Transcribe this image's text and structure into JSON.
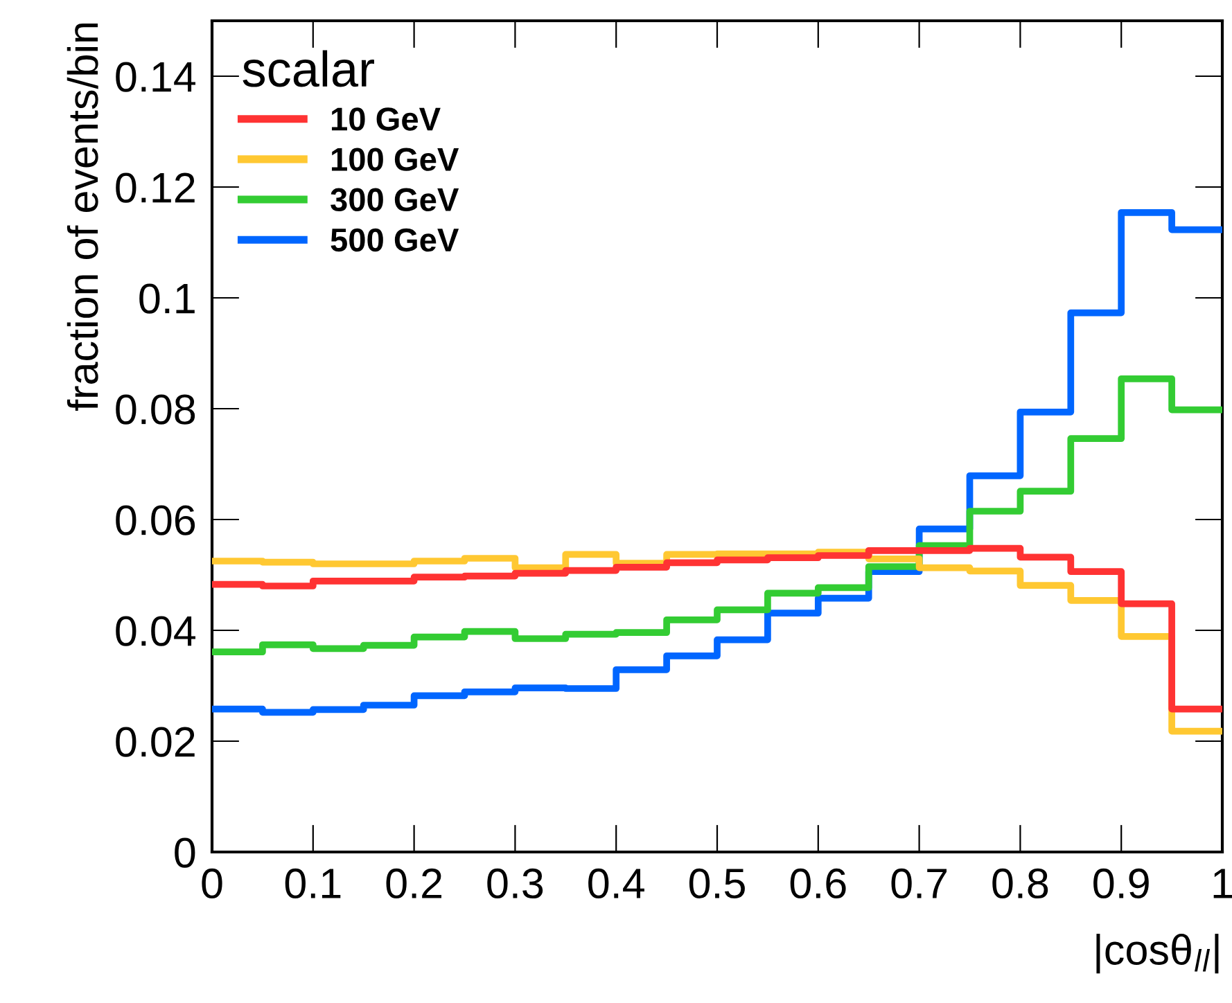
{
  "chart_data": {
    "type": "histogram",
    "xlabel": "|cosθ$_{ll}$|",
    "ylabel": "fraction of events/bin",
    "legend_title": "scalar",
    "legend": "top left",
    "grid": false,
    "bins": [
      0,
      0.05,
      0.1,
      0.15,
      0.2,
      0.25,
      0.3,
      0.35,
      0.4,
      0.45,
      0.5,
      0.55,
      0.6,
      0.65,
      0.7,
      0.75,
      0.8,
      0.85,
      0.9,
      0.95,
      1
    ],
    "xlim": [
      0,
      1
    ],
    "xticks": [
      0,
      0.1,
      0.2,
      0.3,
      0.4,
      0.5,
      0.6,
      0.7,
      0.8,
      0.9,
      1
    ],
    "ylim": [
      0,
      0.15
    ],
    "yticks": [
      0,
      0.02,
      0.04,
      0.06,
      0.08,
      0.1,
      0.12,
      0.14
    ],
    "series": [
      {
        "name": "10 GeV",
        "color": "#ff3333",
        "values": [
          0.0483,
          0.048,
          0.0489,
          0.0489,
          0.0496,
          0.0498,
          0.0503,
          0.0508,
          0.0514,
          0.0522,
          0.0527,
          0.0531,
          0.0535,
          0.0544,
          0.0544,
          0.0548,
          0.0532,
          0.0506,
          0.0448,
          0.0258
        ]
      },
      {
        "name": "100 GeV",
        "color": "#ffc832",
        "values": [
          0.0525,
          0.0523,
          0.052,
          0.052,
          0.0525,
          0.053,
          0.0513,
          0.0537,
          0.0521,
          0.0537,
          0.0538,
          0.0538,
          0.0541,
          0.0529,
          0.0513,
          0.0507,
          0.0481,
          0.0454,
          0.0389,
          0.0218
        ]
      },
      {
        "name": "300 GeV",
        "color": "#33cc33",
        "values": [
          0.0361,
          0.0374,
          0.0367,
          0.0373,
          0.0388,
          0.0398,
          0.0385,
          0.0393,
          0.0396,
          0.0419,
          0.0437,
          0.0467,
          0.0477,
          0.0515,
          0.0553,
          0.0615,
          0.0651,
          0.0746,
          0.0854,
          0.0798
        ]
      },
      {
        "name": "500 GeV",
        "color": "#0066ff",
        "values": [
          0.0258,
          0.0252,
          0.0257,
          0.0265,
          0.0282,
          0.0289,
          0.0296,
          0.0295,
          0.0329,
          0.0354,
          0.0383,
          0.0431,
          0.0458,
          0.0506,
          0.0583,
          0.0679,
          0.0794,
          0.0973,
          0.1154,
          0.1123
        ]
      }
    ]
  }
}
